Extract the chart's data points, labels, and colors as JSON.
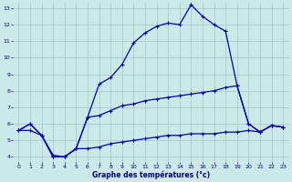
{
  "background_color": "#cce8e8",
  "grid_color": "#aacccc",
  "line_color": "#0000aa",
  "xlabel": "Graphe des températures (°c)",
  "xlim": [
    -0.5,
    23.5
  ],
  "ylim": [
    3.7,
    13.3
  ],
  "yticks": [
    4,
    5,
    6,
    7,
    8,
    9,
    10,
    11,
    12,
    13
  ],
  "xticks": [
    0,
    1,
    2,
    3,
    4,
    5,
    6,
    7,
    8,
    9,
    10,
    11,
    12,
    13,
    14,
    15,
    16,
    17,
    18,
    19,
    20,
    21,
    22,
    23
  ],
  "line1_x": [
    0,
    1,
    2,
    3,
    4,
    5,
    6,
    7,
    8,
    9,
    10,
    11,
    12,
    13,
    14,
    15,
    16,
    17,
    18,
    19,
    20,
    21,
    22,
    23
  ],
  "line1_y": [
    5.6,
    6.0,
    5.3,
    4.0,
    4.0,
    4.5,
    6.4,
    8.4,
    8.8,
    9.6,
    10.9,
    11.5,
    11.9,
    12.1,
    12.0,
    13.2,
    12.5,
    12.0,
    11.6,
    8.3,
    6.0,
    5.5,
    5.9,
    5.8
  ],
  "line2_x": [
    0,
    1,
    2,
    3,
    4,
    5,
    6,
    7,
    8,
    9,
    10,
    11,
    12,
    13,
    14,
    15,
    16,
    17,
    18,
    19,
    20,
    21,
    22,
    23
  ],
  "line2_y": [
    5.6,
    6.0,
    5.3,
    4.0,
    4.0,
    4.5,
    6.4,
    6.5,
    6.8,
    7.1,
    7.2,
    7.4,
    7.5,
    7.6,
    7.7,
    7.8,
    7.9,
    8.0,
    8.2,
    8.3,
    6.0,
    5.5,
    5.9,
    5.8
  ],
  "line3_x": [
    0,
    1,
    2,
    3,
    4,
    5,
    6,
    7,
    8,
    9,
    10,
    11,
    12,
    13,
    14,
    15,
    16,
    17,
    18,
    19,
    20,
    21,
    22,
    23
  ],
  "line3_y": [
    5.6,
    5.6,
    5.3,
    4.1,
    4.0,
    4.5,
    4.5,
    4.6,
    4.8,
    4.9,
    5.0,
    5.1,
    5.2,
    5.3,
    5.3,
    5.4,
    5.4,
    5.4,
    5.5,
    5.5,
    5.6,
    5.5,
    5.9,
    5.8
  ]
}
